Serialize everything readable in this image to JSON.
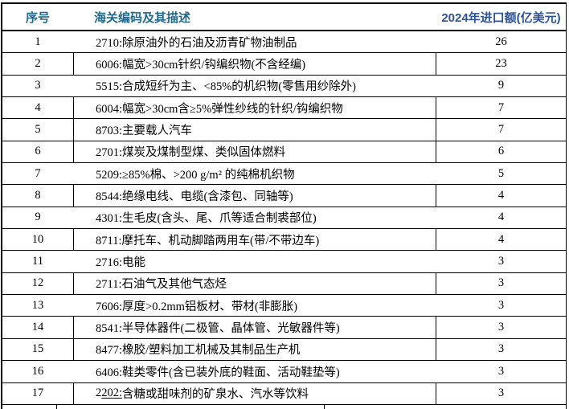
{
  "colors": {
    "border": "#000000",
    "header_left": "#21698C",
    "header_right": "#2F5496",
    "body_text": "#000000",
    "background": "#FFFFFF"
  },
  "header": {
    "col_serial": "序号",
    "col_desc": "海关编码及其描述",
    "col_value": "2024年进口额(亿美元)"
  },
  "rows": [
    {
      "no": "1",
      "desc": "2710:除原油外的石油及沥青矿物油制品",
      "value": "26",
      "dividers": false
    },
    {
      "no": "2",
      "desc": "6006:幅宽>30cm针织/钩编织物(不含经编)",
      "value": "23",
      "dividers": true
    },
    {
      "no": "3",
      "desc": "5515:合成短纤为主、<85%的机织物(零售用纱除外)",
      "value": "9",
      "dividers": false
    },
    {
      "no": "4",
      "desc": "6004:幅宽>30cm含≥5%弹性纱线的针织/钩编织物",
      "value": "7",
      "dividers": true
    },
    {
      "no": "5",
      "desc": "8703:主要载人汽车",
      "value": "7",
      "dividers": true
    },
    {
      "no": "6",
      "desc": "2701:煤炭及煤制型煤、类似固体燃料",
      "value": "6",
      "dividers": true
    },
    {
      "no": "7",
      "desc": "5209:≥85%棉、>200 g/m² 的纯棉机织物",
      "value": "5",
      "dividers": false
    },
    {
      "no": "8",
      "desc": "8544:绝缘电线、电缆(含漆包、同轴等)",
      "value": "4",
      "dividers": true
    },
    {
      "no": "9",
      "desc": "4301:生毛皮(含头、尾、爪等适合制裘部位)",
      "value": "4",
      "dividers": false
    },
    {
      "no": "10",
      "desc": "8711:摩托车、机动脚踏两用车(带/不带边车)",
      "value": "4",
      "dividers": true
    },
    {
      "no": "11",
      "desc": "2716:电能",
      "value": "3",
      "dividers": false
    },
    {
      "no": "12",
      "desc": "2711:石油气及其他气态烃",
      "value": "3",
      "dividers": true
    },
    {
      "no": "13",
      "desc": "7606:厚度>0.2mm铝板材、带材(非膨胀)",
      "value": "3",
      "dividers": false
    },
    {
      "no": "14",
      "desc": "8541:半导体器件(二极管、晶体管、光敏器件等)",
      "value": "3",
      "dividers": true
    },
    {
      "no": "15",
      "desc": "8477:橡胶/塑料加工机械及其制品生产机",
      "value": "3",
      "dividers": true
    },
    {
      "no": "16",
      "desc": "6406:鞋类零件(含已装外底的鞋面、活动鞋垫等)",
      "value": "3",
      "dividers": false
    },
    {
      "no": "17",
      "desc": "2202:含糖或甜味剂的矿泉水、汽水等饮料",
      "value": "3",
      "dividers": true,
      "underline": "202:"
    }
  ]
}
